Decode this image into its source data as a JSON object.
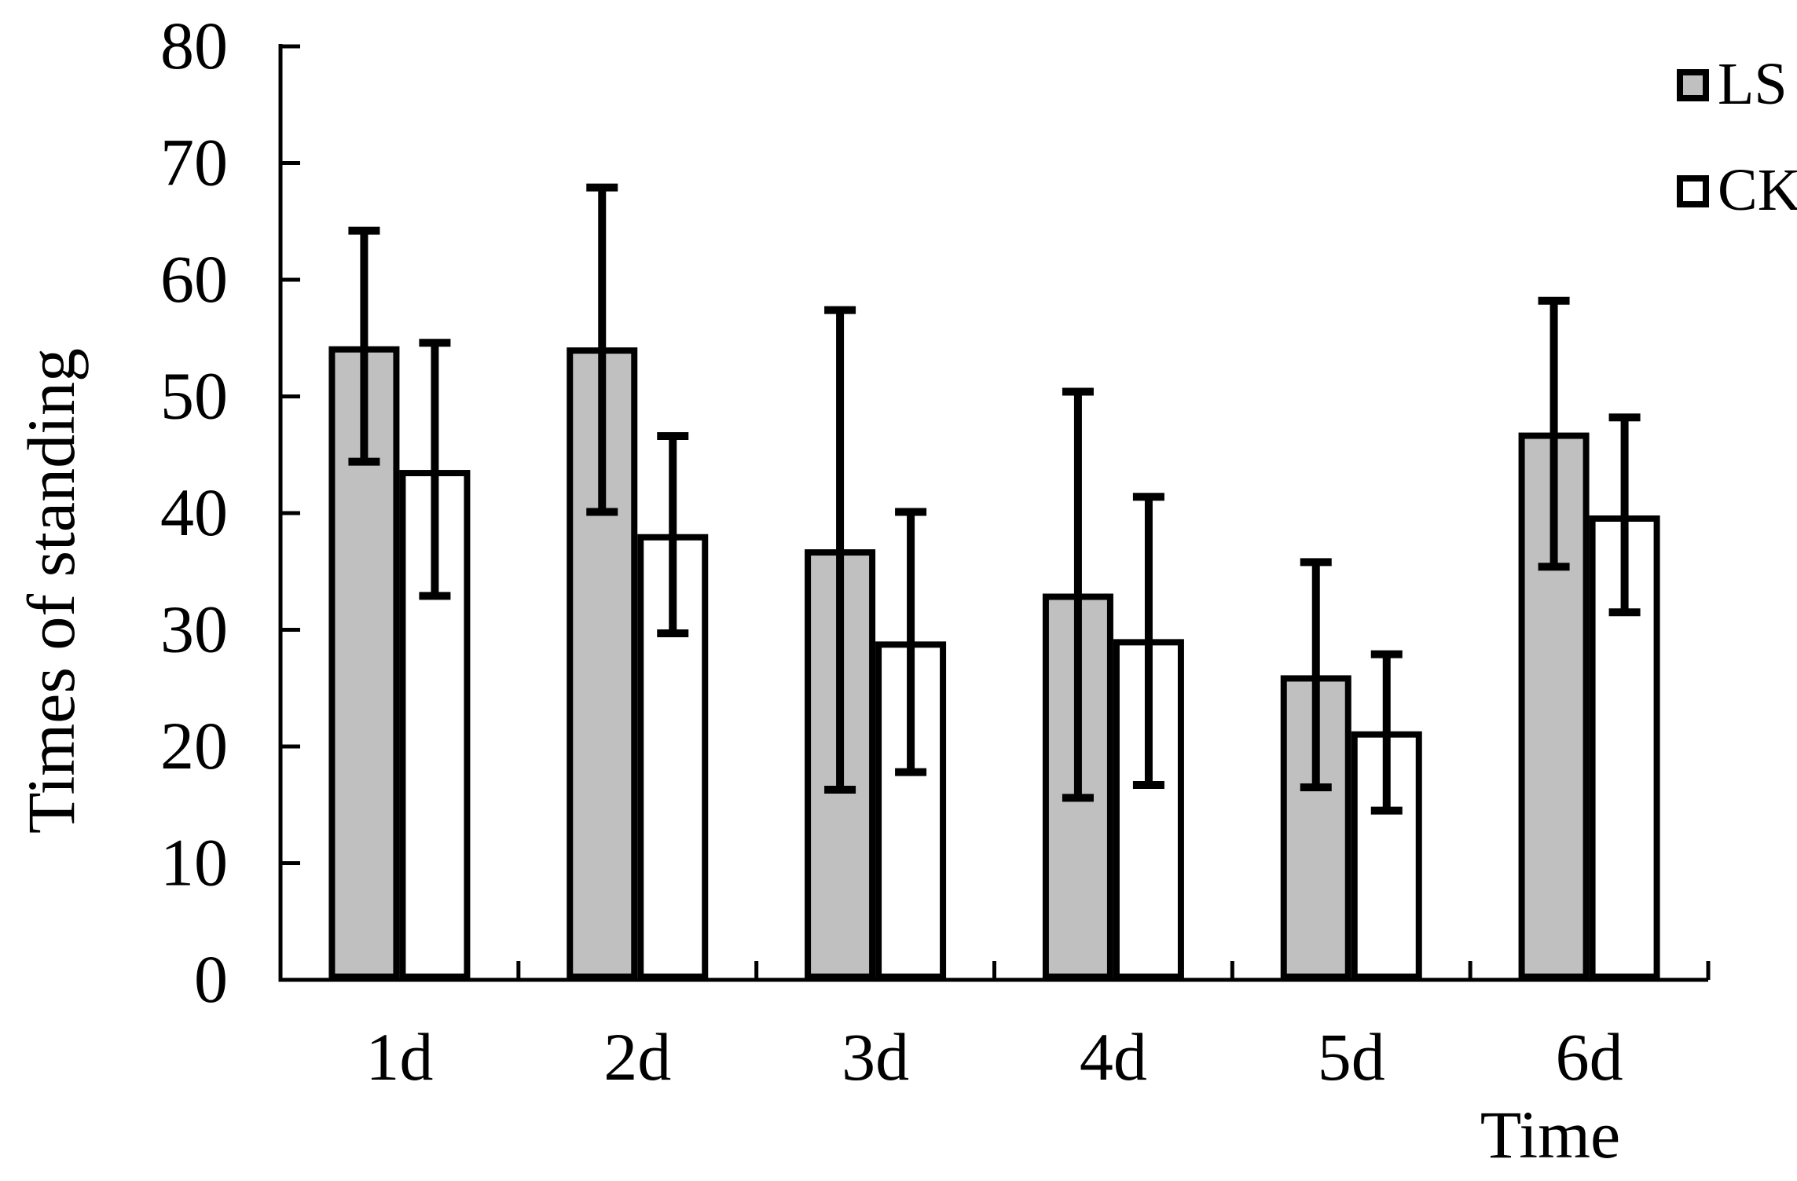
{
  "chart_data": {
    "type": "bar",
    "title": "",
    "categories": [
      "1d",
      "2d",
      "3d",
      "4d",
      "5d",
      "6d"
    ],
    "series": [
      {
        "name": "LS",
        "fill": "#c0c0c0",
        "values": [
          54.3,
          54.2,
          36.9,
          33.1,
          26.1,
          46.9
        ],
        "error_top": [
          64.2,
          67.9,
          57.4,
          50.4,
          35.8,
          58.2
        ],
        "error_bottom": [
          44.4,
          40.1,
          16.3,
          15.6,
          16.5,
          35.4
        ]
      },
      {
        "name": "CK",
        "fill": "#ffffff",
        "values": [
          43.7,
          38.2,
          29.0,
          29.2,
          21.3,
          39.8
        ],
        "error_top": [
          54.6,
          46.6,
          40.1,
          41.4,
          27.9,
          48.2
        ],
        "error_bottom": [
          32.9,
          29.7,
          17.8,
          16.7,
          14.5,
          31.5
        ]
      }
    ],
    "xlabel": "Time",
    "ylabel": "Times of standing",
    "ylim": [
      0,
      80
    ],
    "yticks": [
      0,
      10,
      20,
      30,
      40,
      50,
      60,
      70,
      80
    ],
    "grid": false,
    "legend_position": "top-right",
    "bar_edge_color": "#000000",
    "error_bar_color": "#000000",
    "axis_color": "#000000",
    "background": "#ffffff"
  }
}
